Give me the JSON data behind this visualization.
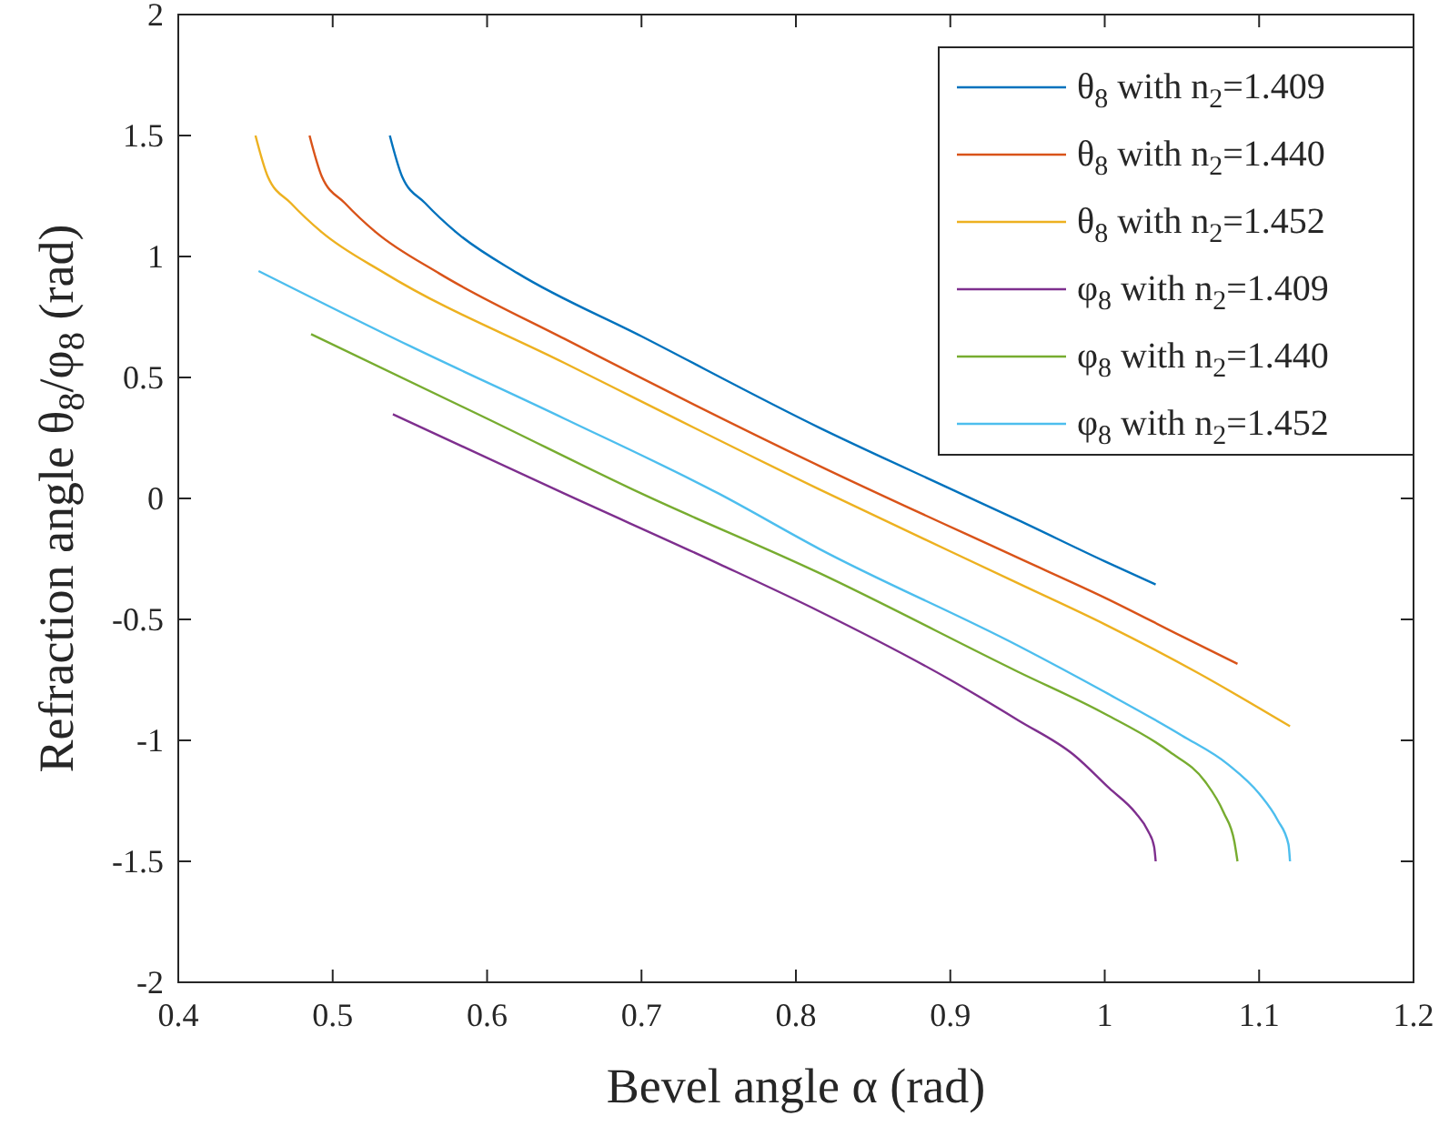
{
  "chart_data": {
    "type": "line",
    "xlabel": "Bevel angle α (rad)",
    "ylabel": "Refraction angle θ$_{8}$/φ$_{8}$ (rad)",
    "xlim": [
      0.4,
      1.2
    ],
    "xticks": [
      0.4,
      0.5,
      0.6,
      0.7,
      0.8,
      0.9,
      1,
      1.1,
      1.2
    ],
    "ylim": [
      -2,
      2
    ],
    "yticks": [
      -2,
      -1.5,
      -1,
      -0.5,
      0,
      0.5,
      1,
      1.5,
      2
    ],
    "grid": false,
    "legend": "top right",
    "marker": "none",
    "line_style": "solid",
    "series": [
      {
        "name": "θ$_{8}$ with n$_{2}$=1.409",
        "color": "#0072bd",
        "x": [
          0.537,
          0.545,
          0.56,
          0.58,
          0.62,
          0.7,
          0.815,
          0.9,
          0.944,
          1.0,
          1.033
        ],
        "values": [
          1.5,
          1.33,
          1.22,
          1.1,
          0.93,
          0.67,
          0.293,
          0.04,
          -0.09,
          -0.26,
          -0.356
        ]
      },
      {
        "name": "θ$_{8}$ with n$_{2}$=1.440",
        "color": "#d95319",
        "x": [
          0.485,
          0.493,
          0.508,
          0.528,
          0.569,
          0.65,
          0.815,
          0.944,
          1.0,
          1.05,
          1.086
        ],
        "values": [
          1.5,
          1.33,
          1.22,
          1.1,
          0.93,
          0.66,
          0.135,
          -0.246,
          -0.41,
          -0.57,
          -0.684
        ]
      },
      {
        "name": "θ$_{8}$ with n$_{2}$=1.452",
        "color": "#edb120",
        "x": [
          0.45,
          0.458,
          0.473,
          0.493,
          0.534,
          0.65,
          0.815,
          0.944,
          1.0,
          1.06,
          1.12
        ],
        "values": [
          1.5,
          1.33,
          1.22,
          1.1,
          0.93,
          0.56,
          0.038,
          -0.351,
          -0.52,
          -0.72,
          -0.942
        ]
      },
      {
        "name": "φ$_{8}$ with n$_{2}$=1.409",
        "color": "#7e2f8e",
        "x": [
          0.539,
          0.65,
          0.75,
          0.815,
          0.9,
          0.944,
          0.98,
          1.003,
          1.02,
          1.028,
          1.032,
          1.033
        ],
        "values": [
          0.348,
          0.02,
          -0.27,
          -0.466,
          -0.75,
          -0.917,
          -1.06,
          -1.198,
          -1.3,
          -1.374,
          -1.44,
          -1.5
        ]
      },
      {
        "name": "φ$_{8}$ with n$_{2}$=1.440",
        "color": "#77ac30",
        "x": [
          0.486,
          0.6,
          0.7,
          0.815,
          0.944,
          1.0,
          1.042,
          1.065,
          1.077,
          1.084,
          1.086
        ],
        "values": [
          0.679,
          0.33,
          0.02,
          -0.308,
          -0.717,
          -0.89,
          -1.047,
          -1.17,
          -1.298,
          -1.42,
          -1.5
        ]
      },
      {
        "name": "φ$_{8}$ with n$_{2}$=1.452",
        "color": "#4dbeee",
        "x": [
          0.452,
          0.55,
          0.65,
          0.75,
          0.815,
          0.944,
          1.0,
          1.05,
          1.08,
          1.1,
          1.112,
          1.119,
          1.12
        ],
        "values": [
          0.94,
          0.63,
          0.33,
          0.02,
          -0.208,
          -0.609,
          -0.8,
          -0.98,
          -1.1,
          -1.22,
          -1.33,
          -1.43,
          -1.5
        ]
      }
    ]
  }
}
